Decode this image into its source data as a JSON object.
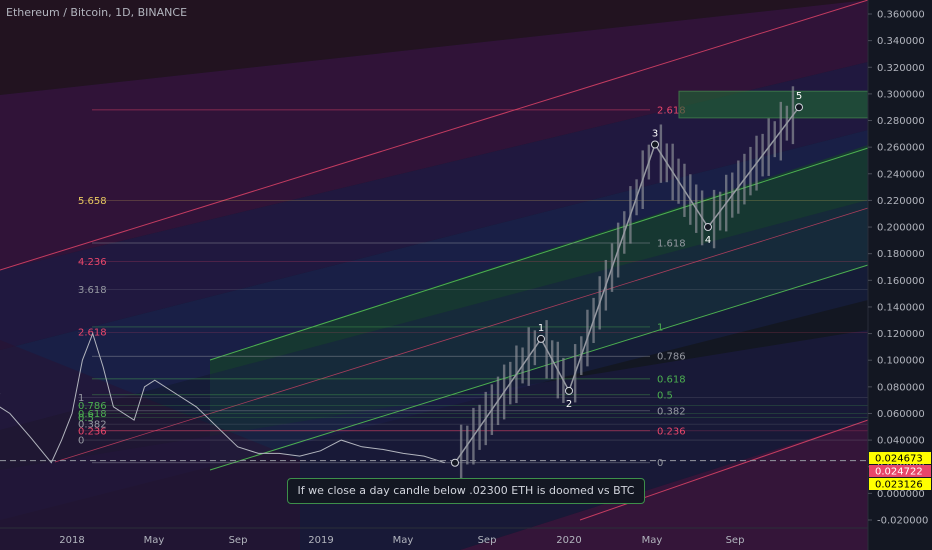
{
  "header": {
    "title": "Ethereum / Bitcoin, 1D, BINANCE"
  },
  "annotation": {
    "text": "If we close a day candle below .02300  ETH is doomed vs BTC"
  },
  "colors": {
    "background": "#131722",
    "fib_red": "#e8466a",
    "fib_green": "#4caf50",
    "fib_gray": "#9598a1",
    "fib_yellow": "#e6c760",
    "price_line": "#b2b5be",
    "label_yellow": "#ffff00",
    "label_red": "#e8466a"
  },
  "chart_data": {
    "type": "line",
    "symbol": "Ethereum / Bitcoin",
    "interval": "1D",
    "exchange": "BINANCE",
    "x_tick_labels": [
      "2018",
      "May",
      "Sep",
      "2019",
      "May",
      "Sep",
      "2020",
      "May",
      "Sep"
    ],
    "y_tick_labels": [
      "0.360000",
      "0.340000",
      "0.320000",
      "0.300000",
      "0.280000",
      "0.260000",
      "0.240000",
      "0.220000",
      "0.200000",
      "0.180000",
      "0.160000",
      "0.140000",
      "0.120000",
      "0.100000",
      "0.080000",
      "0.060000",
      "0.040000",
      "0.020000",
      "0.000000",
      "-0.020000"
    ],
    "ylim": [
      -0.025,
      0.37
    ],
    "price_labels": [
      {
        "text": "0.024673",
        "value": 0.024673,
        "color": "#ffff00"
      },
      {
        "text": "0.024722",
        "value": 0.024722,
        "color": "#e8466a"
      },
      {
        "text": "0.023126",
        "value": 0.023126,
        "color": "#ffff00"
      }
    ],
    "left_fib_levels": [
      {
        "label": "5.658",
        "value": 0.22,
        "color": "#e6c760"
      },
      {
        "label": "4.236",
        "value": 0.174,
        "color": "#e8466a"
      },
      {
        "label": "3.618",
        "value": 0.153,
        "color": "#9598a1"
      },
      {
        "label": "2.618",
        "value": 0.121,
        "color": "#e8466a"
      },
      {
        "label": "1",
        "value": 0.072,
        "color": "#9598a1"
      },
      {
        "label": "0.786",
        "value": 0.066,
        "color": "#4caf50"
      },
      {
        "label": "0.618",
        "value": 0.06,
        "color": "#4caf50"
      },
      {
        "label": "0.5",
        "value": 0.057,
        "color": "#4caf50"
      },
      {
        "label": "0.382",
        "value": 0.052,
        "color": "#9598a1"
      },
      {
        "label": "0.236",
        "value": 0.047,
        "color": "#e8466a"
      },
      {
        "label": "0",
        "value": 0.04,
        "color": "#9598a1"
      }
    ],
    "right_fib_levels": [
      {
        "label": "2.618",
        "value": 0.288,
        "color": "#e8466a"
      },
      {
        "label": "1.618",
        "value": 0.188,
        "color": "#9598a1"
      },
      {
        "label": "1",
        "value": 0.125,
        "color": "#4caf50"
      },
      {
        "label": "0.786",
        "value": 0.103,
        "color": "#9598a1"
      },
      {
        "label": "0.618",
        "value": 0.086,
        "color": "#4caf50"
      },
      {
        "label": "0.5",
        "value": 0.074,
        "color": "#4caf50"
      },
      {
        "label": "0.382",
        "value": 0.062,
        "color": "#9598a1"
      },
      {
        "label": "0.236",
        "value": 0.047,
        "color": "#e8466a"
      },
      {
        "label": "0",
        "value": 0.023,
        "color": "#9598a1"
      }
    ],
    "wave_points": [
      {
        "label": "",
        "x": "2019-07",
        "y": 0.023
      },
      {
        "label": "1",
        "x": "2019-11",
        "y": 0.116
      },
      {
        "label": "2",
        "x": "2019-12",
        "y": 0.077
      },
      {
        "label": "3",
        "x": "2020-05",
        "y": 0.262
      },
      {
        "label": "4",
        "x": "2020-07",
        "y": 0.2
      },
      {
        "label": "5",
        "x": "2020-10",
        "y": 0.29
      }
    ],
    "price_series": [
      {
        "x": "2017-08",
        "y": 0.075
      },
      {
        "x": "2017-09",
        "y": 0.07
      },
      {
        "x": "2017-10",
        "y": 0.06
      },
      {
        "x": "2017-11",
        "y": 0.042
      },
      {
        "x": "2017-12",
        "y": 0.023
      },
      {
        "x": "2017-12b",
        "y": 0.04
      },
      {
        "x": "2018-01",
        "y": 0.06
      },
      {
        "x": "2018-01b",
        "y": 0.1
      },
      {
        "x": "2018-02",
        "y": 0.12
      },
      {
        "x": "2018-02b",
        "y": 0.095
      },
      {
        "x": "2018-03",
        "y": 0.065
      },
      {
        "x": "2018-04",
        "y": 0.055
      },
      {
        "x": "2018-04b",
        "y": 0.08
      },
      {
        "x": "2018-05",
        "y": 0.085
      },
      {
        "x": "2018-06",
        "y": 0.075
      },
      {
        "x": "2018-07",
        "y": 0.065
      },
      {
        "x": "2018-08",
        "y": 0.05
      },
      {
        "x": "2018-09",
        "y": 0.035
      },
      {
        "x": "2018-10",
        "y": 0.03
      },
      {
        "x": "2018-11",
        "y": 0.03
      },
      {
        "x": "2018-12",
        "y": 0.028
      },
      {
        "x": "2019-01",
        "y": 0.032
      },
      {
        "x": "2019-02",
        "y": 0.04
      },
      {
        "x": "2019-03",
        "y": 0.035
      },
      {
        "x": "2019-04",
        "y": 0.033
      },
      {
        "x": "2019-05",
        "y": 0.03
      },
      {
        "x": "2019-06",
        "y": 0.028
      },
      {
        "x": "2019-07",
        "y": 0.023
      }
    ],
    "target_zone": {
      "y_low": 0.282,
      "y_high": 0.302
    },
    "support_line": 0.0246
  }
}
